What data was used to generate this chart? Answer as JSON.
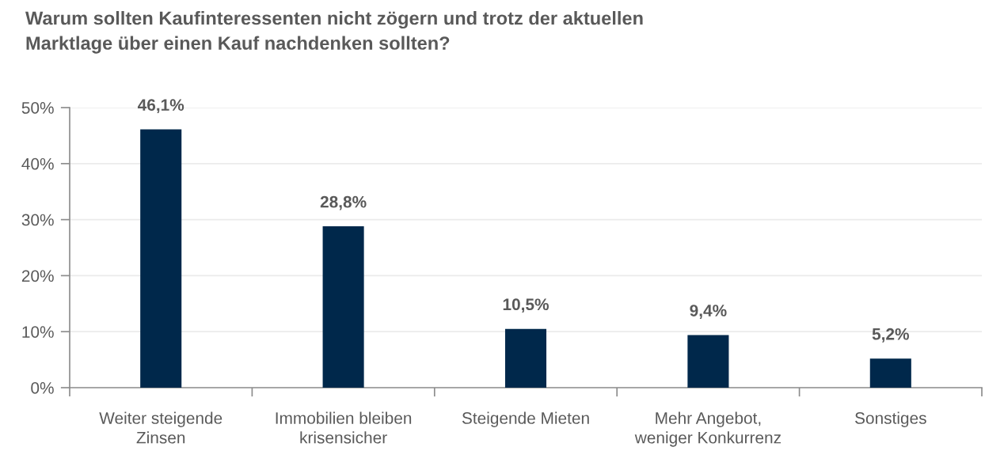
{
  "chart_data": {
    "type": "bar",
    "title": "Warum sollten Kaufinteressenten nicht zögern und trotz der aktuellen\nMarktlage über einen Kauf nachdenken sollten?",
    "categories": [
      "Weiter steigende\nZinsen",
      "Immobilien bleiben\nkrisensicher",
      "Steigende Mieten",
      "Mehr Angebot,\nweniger Konkurrenz",
      "Sonstiges"
    ],
    "values": [
      46.1,
      28.8,
      10.5,
      9.4,
      5.2
    ],
    "value_labels": [
      "46,1%",
      "28,8%",
      "10,5%",
      "9,4%",
      "5,2%"
    ],
    "color": "#00284b",
    "ylim": [
      0,
      50
    ],
    "yticks": [
      {
        "value": 0,
        "label": "0%"
      },
      {
        "value": 10,
        "label": "10%"
      },
      {
        "value": 20,
        "label": "20%"
      },
      {
        "value": 30,
        "label": "30%"
      },
      {
        "value": 40,
        "label": "40%"
      },
      {
        "value": 50,
        "label": "50%"
      }
    ],
    "grid": "y"
  }
}
